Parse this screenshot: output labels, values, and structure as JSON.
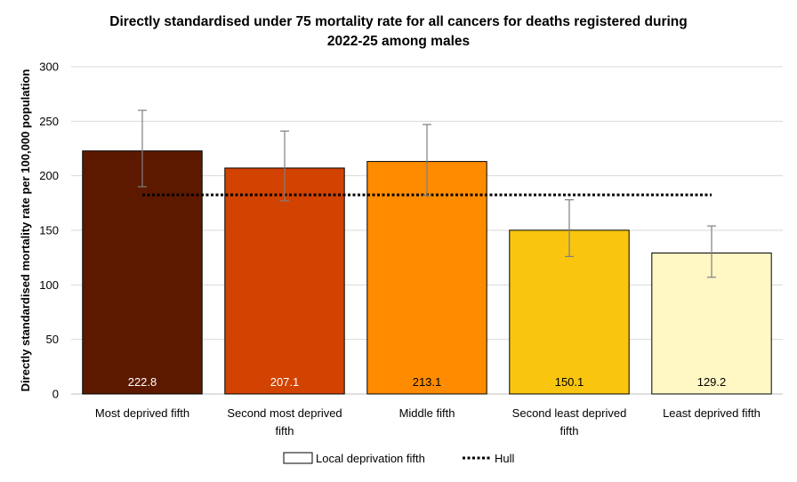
{
  "chart_data": {
    "type": "bar",
    "title_lines": [
      "Directly standardised under 75 mortality rate for all cancers for deaths registered during",
      "2022-25 among males"
    ],
    "ylabel": "Directly standardised mortality rate per 100,000 population",
    "xlabel": "",
    "ylim": [
      0,
      300
    ],
    "yticks": [
      0,
      50,
      100,
      150,
      200,
      250,
      300
    ],
    "grid": true,
    "categories": [
      [
        "Most deprived fifth"
      ],
      [
        "Second most deprived",
        "fifth"
      ],
      [
        "Middle fifth"
      ],
      [
        "Second least deprived",
        "fifth"
      ],
      [
        "Least deprived fifth"
      ]
    ],
    "values": [
      222.8,
      207.1,
      213.1,
      150.1,
      129.2
    ],
    "data_labels": [
      "222.8",
      "207.1",
      "213.1",
      "150.1",
      "129.2"
    ],
    "error_bars": [
      {
        "low": 190,
        "high": 260
      },
      {
        "low": 177,
        "high": 241
      },
      {
        "low": 182,
        "high": 247
      },
      {
        "low": 126,
        "high": 178
      },
      {
        "low": 107,
        "high": 154
      }
    ],
    "bar_colors": [
      "#5C1900",
      "#D24200",
      "#FF8C00",
      "#F9C50F",
      "#FFF8C4"
    ],
    "label_colors": [
      "#ffffff",
      "#ffffff",
      "#000000",
      "#000000",
      "#000000"
    ],
    "reference_line": {
      "name": "Hull",
      "value": 182.5,
      "color": "#000000"
    },
    "legend": {
      "position": "bottom",
      "items": [
        {
          "label": "Local deprivation fifth",
          "kind": "box"
        },
        {
          "label": "Hull",
          "kind": "dotted-line"
        }
      ]
    }
  }
}
